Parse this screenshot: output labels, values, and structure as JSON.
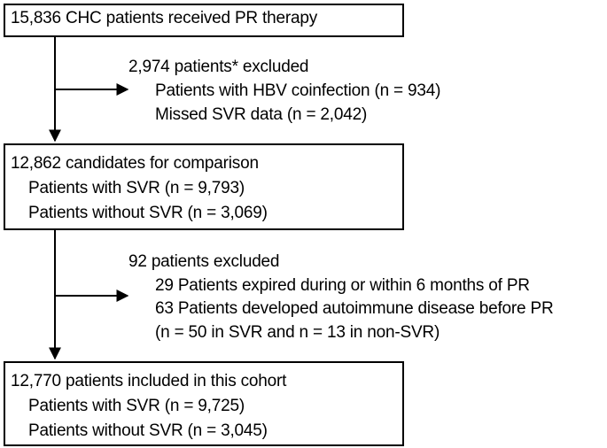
{
  "boxes": {
    "start": {
      "lines": [
        "15,836 CHC patients received PR therapy"
      ]
    },
    "candidates": {
      "lines": [
        "12,862 candidates for comparison",
        "Patients with SVR (n = 9,793)",
        "Patients without SVR (n = 3,069)"
      ]
    },
    "cohort": {
      "lines": [
        "12,770 patients included in this cohort",
        "Patients with SVR (n = 9,725)",
        "Patients without SVR (n = 3,045)"
      ]
    }
  },
  "exclusions": {
    "first": {
      "lines": [
        "2,974 patients* excluded",
        "Patients with HBV coinfection (n = 934)",
        "Missed SVR data (n = 2,042)"
      ]
    },
    "second": {
      "lines": [
        "92 patients excluded",
        "29 Patients expired during or within 6 months of PR",
        "63 Patients developed autoimmune disease before PR",
        "(n = 50 in SVR and n = 13 in non-SVR)"
      ]
    }
  }
}
